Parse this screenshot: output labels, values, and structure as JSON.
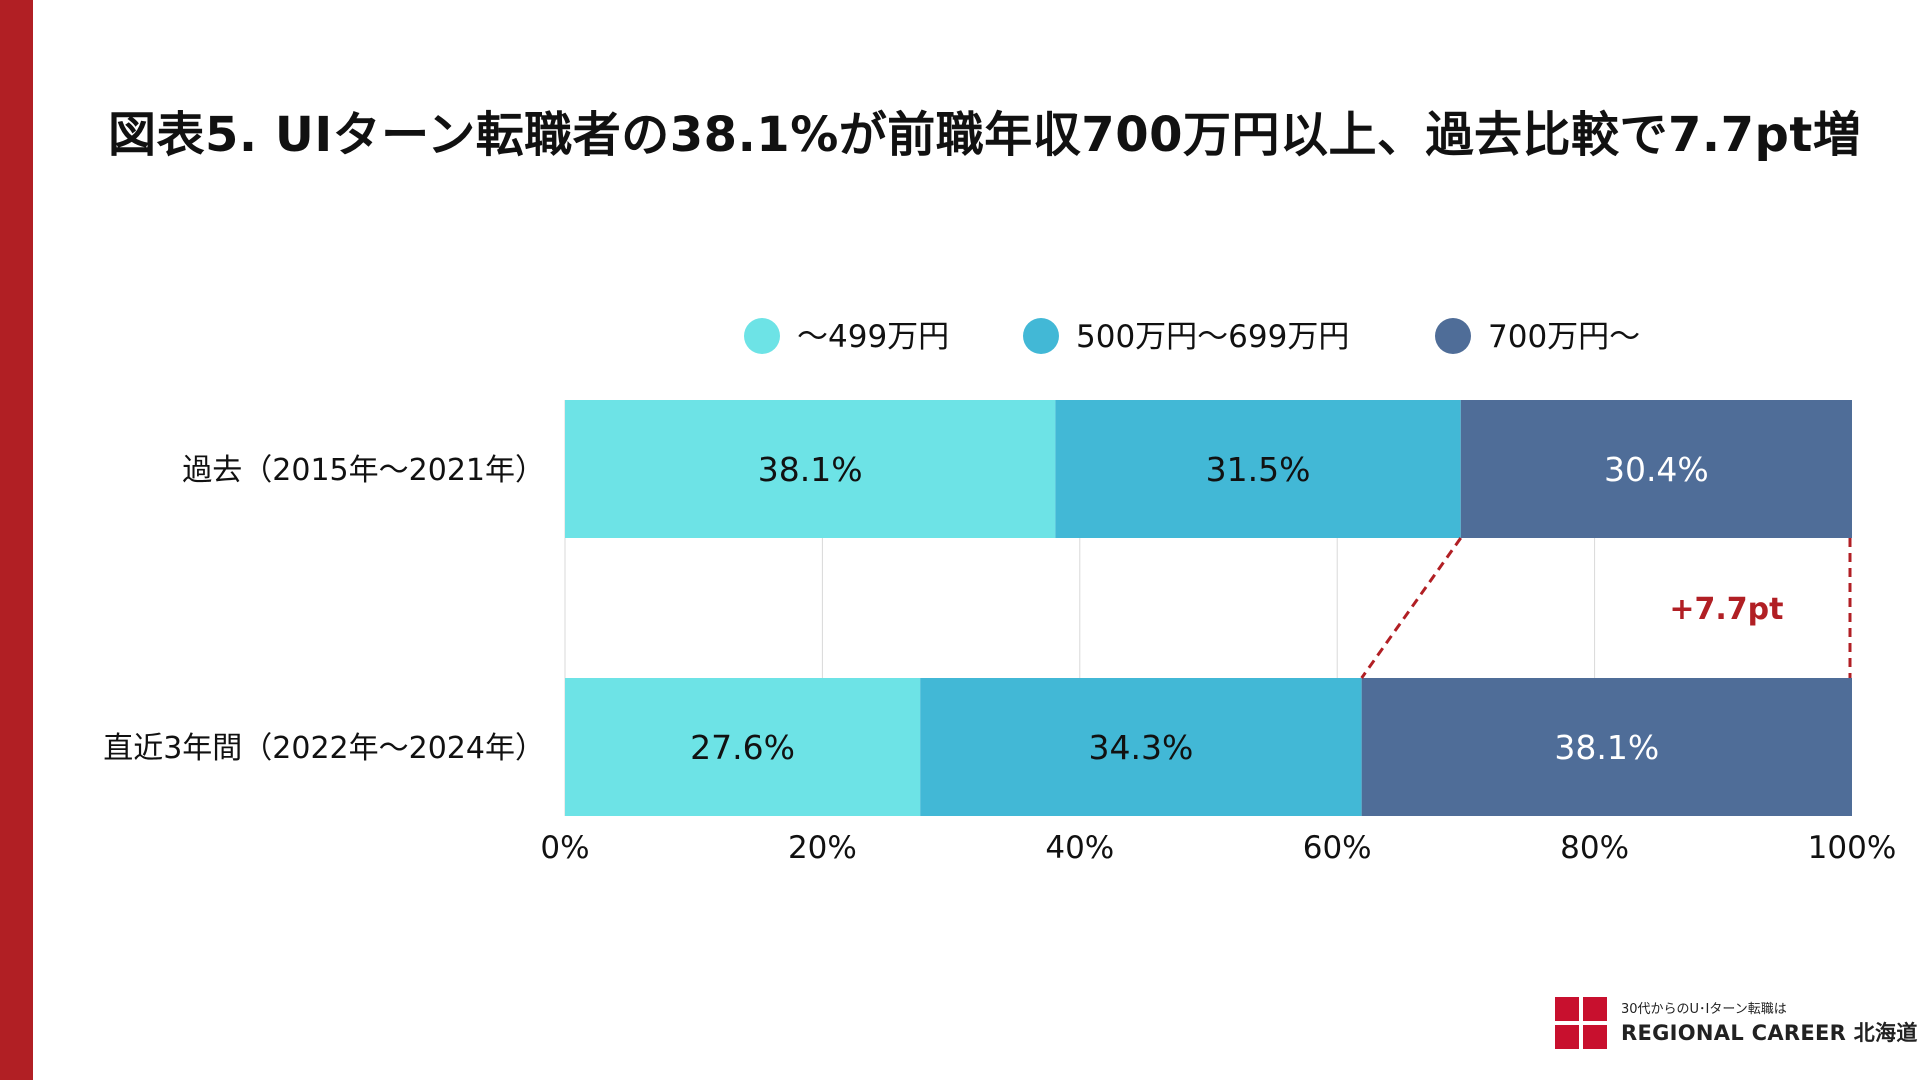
{
  "title": "図表5. UIターン転職者の38.1%が前職年収700万円以上、過去比較で7.7pt増",
  "chart_data": {
    "type": "bar",
    "orientation": "horizontal",
    "stacked": true,
    "percent_stacked": true,
    "categories": [
      "過去（2015年～2021年）",
      "直近3年間（2022年～2024年）"
    ],
    "series": [
      {
        "name": "～499万円",
        "color": "#6de3e6",
        "label_color": "#111111",
        "values": [
          38.1,
          27.6
        ],
        "labels": [
          "38.1%",
          "27.6%"
        ]
      },
      {
        "name": "500万円～699万円",
        "color": "#42b8d6",
        "label_color": "#111111",
        "values": [
          31.5,
          34.3
        ],
        "labels": [
          "31.5%",
          "34.3%"
        ]
      },
      {
        "name": "700万円～",
        "color": "#4f6d98",
        "label_color": "#ffffff",
        "values": [
          30.4,
          38.1
        ],
        "labels": [
          "30.4%",
          "38.1%"
        ]
      }
    ],
    "xlim": [
      0,
      100
    ],
    "x_ticks": [
      0,
      20,
      40,
      60,
      80,
      100
    ],
    "x_tick_labels": [
      "0%",
      "20%",
      "40%",
      "60%",
      "80%",
      "100%"
    ],
    "grid": true,
    "legend": "top",
    "annotation": {
      "text": "+7.7pt",
      "series": "700万円～",
      "color": "#b11f24"
    }
  },
  "logo": {
    "tagline": "30代からのU･Iターン転職は",
    "name": "REGIONAL CAREER 北海道",
    "color": "#c8102e"
  },
  "colors": {
    "accent_bar": "#b11f24"
  }
}
